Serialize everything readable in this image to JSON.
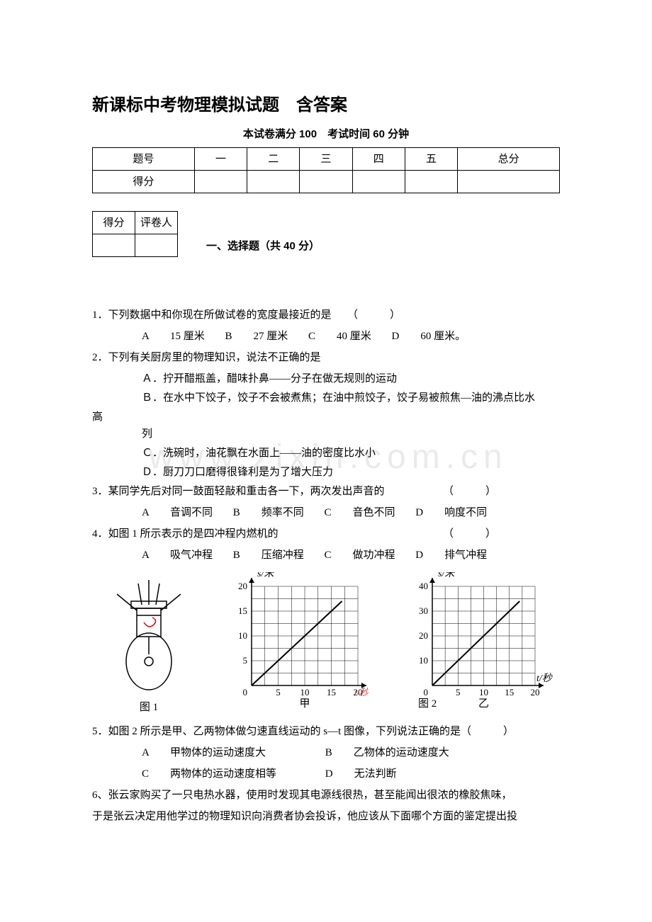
{
  "title": "新课标中考物理模拟试题　含答案",
  "subtitle": "本试卷满分 100　考试时间 60 分钟",
  "scoreTable": {
    "headers": [
      "题号",
      "一",
      "二",
      "三",
      "四",
      "五",
      "总分"
    ],
    "row2_label": "得分"
  },
  "graderTable": {
    "c1": "得分",
    "c2": "评卷人"
  },
  "sectionTitle": "一、选择题（共 40 分）",
  "q1": {
    "stem": "1．下列数据中和你现在所做试卷的宽度最接近的是　　（　　　）",
    "A": "A　　15 厘米",
    "B": "B　　27 厘米",
    "C": "C　　40 厘米",
    "D": "D　　60 厘米。"
  },
  "q2": {
    "stem": "2．下列有关厨房里的物理知识，说法不正确的是",
    "A": "Ａ．拧开醋瓶盖，醋味扑鼻——分子在做无规则的运动",
    "B1": "Ｂ．在水中下饺子，饺子不会被煮焦；在油中煎饺子，饺子易被煎焦—油的沸点比水",
    "B2": "高",
    "B3": "列",
    "C": "Ｃ．洗碗时，油花飘在水面上——油的密度比水小",
    "D": "Ｄ．厨刀刀口磨得很锋利是为了增大压力"
  },
  "q3": {
    "stem": "3．某同学先后对同一鼓面轻敲和重击各一下，两次发出声音的　　　　　　（　　　）",
    "A": "A　　音调不同",
    "B": "B　　频率不同",
    "C": "C　　音色不同",
    "D": "D　　响度不同"
  },
  "q4": {
    "stem": "4．如图 1 所示表示的是四冲程内燃机的　　　　　　　　　　　　　　　　（　　　）",
    "A": "A　　吸气冲程",
    "B": "B　　压缩冲程",
    "C": "C　　做功冲程",
    "D": "D　　排气冲程"
  },
  "fig1_label": "图 1",
  "fig2_label": "图 2",
  "chart": {
    "type": "line",
    "axis_label_y": "s/米",
    "axis_label_x": "t/秒",
    "left": {
      "label": "甲",
      "ylim": [
        0,
        20
      ],
      "yticks": [
        0,
        5,
        10,
        15,
        20
      ],
      "xlim": [
        0,
        20
      ],
      "xticks": [
        0,
        5,
        10,
        15,
        20
      ],
      "line": {
        "x1": 0,
        "y1": 0,
        "x2": 17,
        "y2": 17
      },
      "grid_color": "#000000",
      "bg": "#ffffff",
      "line_color": "#000000"
    },
    "right": {
      "label": "乙",
      "ylim": [
        0,
        40
      ],
      "yticks": [
        0,
        10,
        20,
        30,
        40
      ],
      "xlim": [
        0,
        20
      ],
      "xticks": [
        0,
        5,
        10,
        15,
        20
      ],
      "line": {
        "x1": 0,
        "y1": 0,
        "x2": 17,
        "y2": 34
      },
      "grid_color": "#000000",
      "bg": "#ffffff",
      "line_color": "#000000"
    }
  },
  "q5": {
    "stem": "5．如图 2 所示是甲、乙两物体做匀速直线运动的 s—t 图像，下列说法正确的是（　　　）",
    "A": "A　　甲物体的运动速度大",
    "B": "B　　乙物体的运动速度大",
    "C": "C　　两物体的运动速度相等",
    "D": "D　　无法判断"
  },
  "q6": {
    "l1": "6、张云家购买了一只电热水器，使用时发现其电源线很热，甚至能闻出很浓的橡胶焦味，",
    "l2": "于是张云决定用他学过的物理知识向消费者协会投诉，他应该从下面哪个方面的鉴定提出投"
  },
  "watermark": "www.zixin.com.cn"
}
